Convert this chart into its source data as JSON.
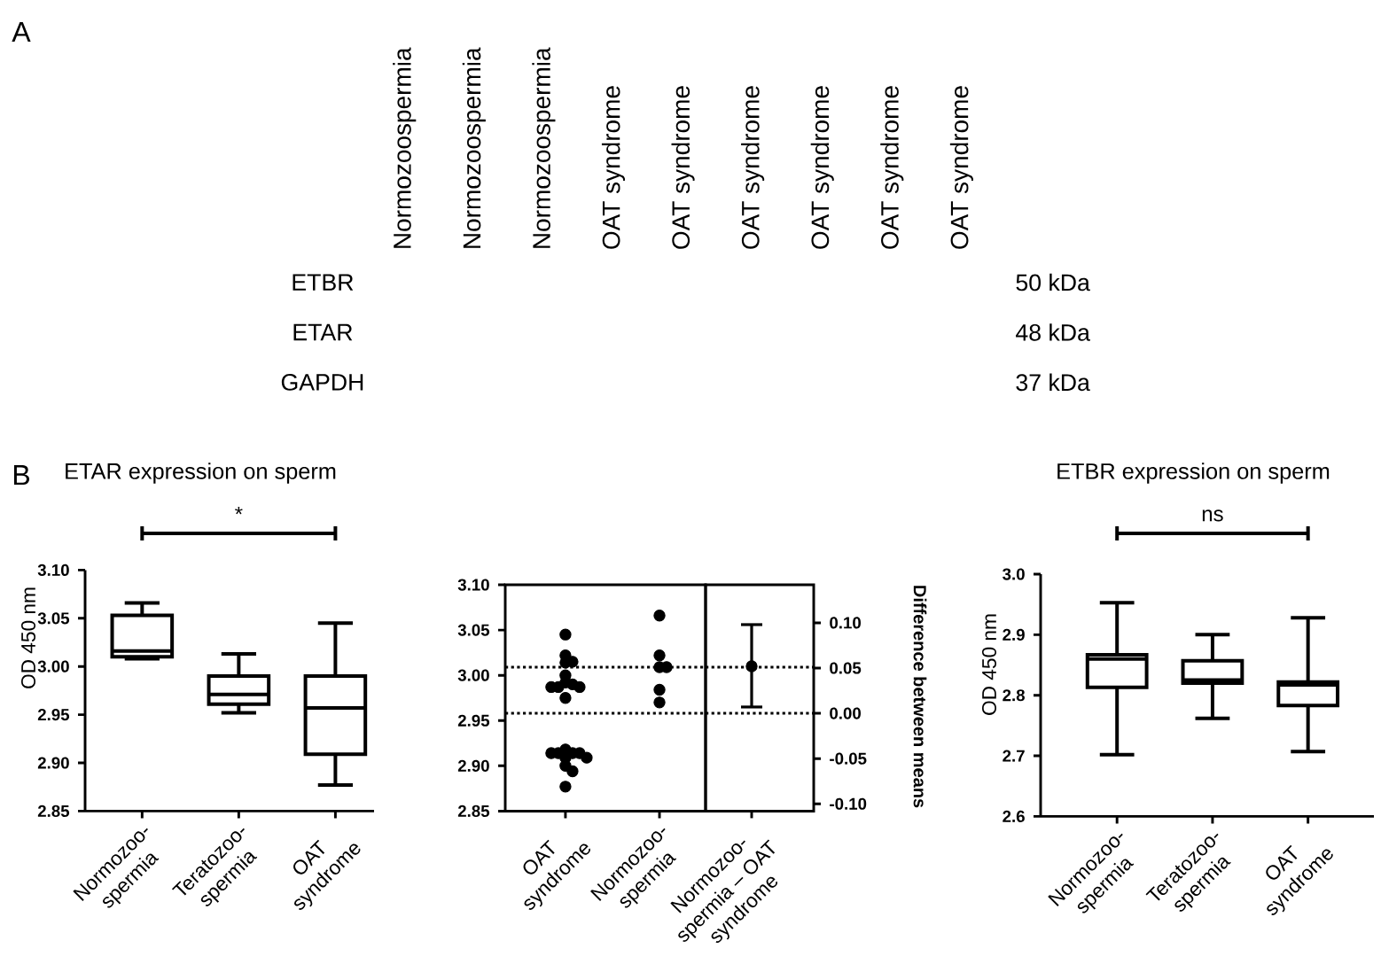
{
  "chart_data": [
    {
      "type": "other",
      "annotations": [
        "A"
      ],
      "categories": [
        "Normozoospermia",
        "Normozoospermia",
        "Normozoospermia",
        "OAT syndrome",
        "OAT syndrome",
        "OAT syndrome",
        "OAT syndrome",
        "OAT syndrome",
        "OAT syndrome"
      ],
      "y_categories": [
        "ETBR",
        "ETAR",
        "GAPDH"
      ],
      "y2_categories": [
        "50 kDa",
        "48 kDa",
        "37 kDa"
      ]
    },
    {
      "type": "box",
      "title": "ETAR expression on sperm",
      "ylabel": "OD 450 nm",
      "annotations": [
        "B",
        "*"
      ],
      "categories": [
        "Normozoo-spermia",
        "Teratozoo-spermia",
        "OAT syndrome"
      ],
      "color": "#000000",
      "boxes": [
        {
          "low": 3.008,
          "q1": 3.01,
          "median": 3.016,
          "q3": 3.053,
          "high": 3.066
        },
        {
          "low": 2.952,
          "q1": 2.961,
          "median": 2.971,
          "q3": 2.99,
          "high": 3.013
        },
        {
          "low": 2.877,
          "q1": 2.909,
          "median": 2.957,
          "q3": 2.99,
          "high": 3.045
        }
      ],
      "ylim": [
        2.85,
        3.1
      ],
      "yticks": [
        2.85,
        {
          "value": 2.9,
          "label": "2.90"
        },
        2.95,
        {
          "value": 3,
          "label": "3.00"
        },
        3.05,
        {
          "value": 3.1,
          "label": "3.10"
        }
      ]
    },
    {
      "type": "scatter",
      "categories": [
        "OAT syndrome",
        "Normozoo-spermia"
      ],
      "marker": "circle",
      "series": [
        {
          "color": "#000000",
          "x": [
            "OAT syndrome",
            "OAT syndrome",
            "OAT syndrome",
            "OAT syndrome",
            "OAT syndrome",
            "OAT syndrome",
            "OAT syndrome",
            "OAT syndrome",
            "OAT syndrome",
            "OAT syndrome",
            "OAT syndrome",
            "OAT syndrome",
            "OAT syndrome",
            "OAT syndrome",
            "OAT syndrome",
            "OAT syndrome",
            "OAT syndrome",
            "OAT syndrome",
            "OAT syndrome",
            "OAT syndrome",
            "OAT syndrome"
          ],
          "values": [
            3.045,
            3.022,
            3.015,
            3.014,
            3.0,
            2.992,
            2.99,
            2.987,
            2.987,
            2.987,
            2.975,
            2.918,
            2.914,
            2.914,
            2.914,
            2.914,
            2.909,
            2.909,
            2.9,
            2.894,
            2.877
          ]
        },
        {
          "color": "#000000",
          "x": [
            "Normozoo-spermia",
            "Normozoo-spermia",
            "Normozoo-spermia",
            "Normozoo-spermia",
            "Normozoo-spermia",
            "Normozoo-spermia"
          ],
          "values": [
            3.066,
            3.022,
            3.009,
            3.009,
            2.984,
            2.97
          ]
        }
      ],
      "ref_lines": [
        {
          "axis": "y",
          "value": 3.009,
          "line_style": "dotted"
        },
        {
          "axis": "y",
          "value": 2.958,
          "line_style": "dotted"
        }
      ],
      "ylim": [
        2.85,
        3.1
      ],
      "yticks": [
        2.85,
        {
          "value": 2.9,
          "label": "2.90"
        },
        2.95,
        {
          "value": 3,
          "label": "3.00"
        },
        3.05,
        {
          "value": 3.1,
          "label": "3.10"
        }
      ]
    },
    {
      "type": "scatter",
      "ylabel": "Difference between means",
      "categories": [
        "Normozoo-spermia – OAT syndrome"
      ],
      "marker": "circle",
      "series": [
        {
          "color": "#000000",
          "x": [
            "Normozoo-spermia – OAT syndrome"
          ],
          "values": [
            0.052
          ],
          "errors": [
            [
              0.007,
              0.098
            ]
          ]
        }
      ],
      "ref_lines": [
        {
          "axis": "y",
          "value": 0.051,
          "line_style": "dotted"
        },
        {
          "axis": "y",
          "value": 0,
          "line_style": "dotted"
        }
      ],
      "ylim": [
        -0.108,
        0.142
      ],
      "yticks": [
        {
          "value": -0.1,
          "label": "-0.10"
        },
        -0.05,
        {
          "value": 0,
          "label": "0.00"
        },
        0.05,
        {
          "value": 0.1,
          "label": "0.10"
        }
      ]
    },
    {
      "type": "box",
      "title": "ETBR expression on sperm",
      "ylabel": "OD 450 nm",
      "annotations": [
        "ns"
      ],
      "categories": [
        "Normozoo-spermia",
        "Teratozoo-spermia",
        "OAT syndrome"
      ],
      "color": "#000000",
      "boxes": [
        {
          "low": 2.702,
          "q1": 2.813,
          "median": 2.86,
          "q3": 2.867,
          "high": 2.953
        },
        {
          "low": 2.762,
          "q1": 2.82,
          "median": 2.825,
          "q3": 2.857,
          "high": 2.9
        },
        {
          "low": 2.707,
          "q1": 2.783,
          "median": 2.817,
          "q3": 2.822,
          "high": 2.928
        }
      ],
      "ylim": [
        2.6,
        3.0
      ],
      "yticks": [
        2.6,
        2.7,
        2.8,
        2.9,
        {
          "value": 3,
          "label": "3.0"
        }
      ]
    }
  ]
}
